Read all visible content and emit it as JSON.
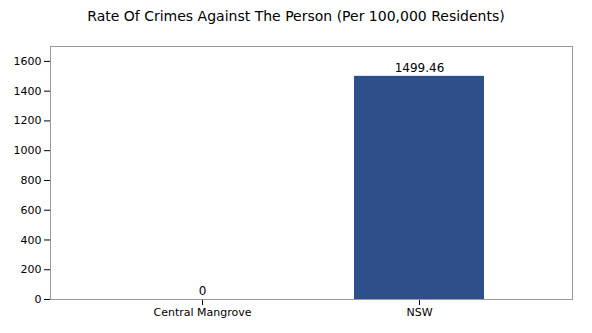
{
  "chart_data": {
    "type": "bar",
    "title": "Rate Of Crimes Against The Person (Per 100,000 Residents)",
    "categories": [
      "Central Mangrove",
      "NSW"
    ],
    "values": [
      0,
      1499.46
    ],
    "color": "#2e4f8a",
    "ylim": [
      0,
      1700
    ],
    "yticks": [
      0,
      200,
      400,
      600,
      800,
      1000,
      1200,
      1400,
      1600
    ],
    "grid": false,
    "data_labels": true
  }
}
